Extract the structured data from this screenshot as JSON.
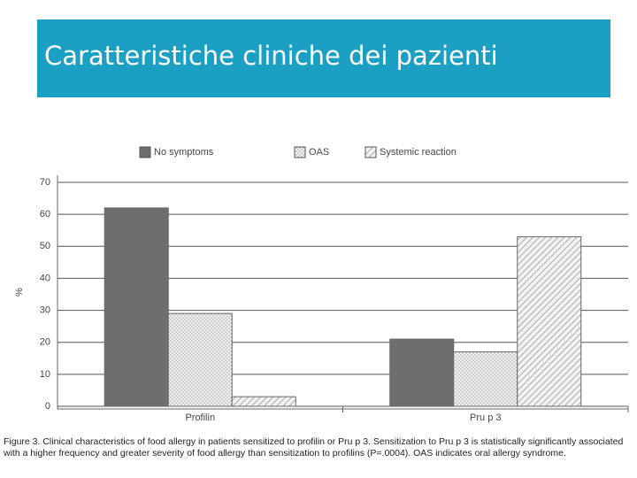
{
  "header": {
    "title": "Caratteristiche cliniche dei pazienti"
  },
  "chart_data": {
    "type": "bar",
    "categories": [
      "Profilin",
      "Pru p 3"
    ],
    "y_label": "%",
    "series": [
      {
        "name": "No symptoms",
        "color": "#6e6e6e",
        "pattern": "solid",
        "values": [
          62,
          21
        ]
      },
      {
        "name": "OAS",
        "color": "#c8c8c8",
        "pattern": "dots",
        "values": [
          29,
          17
        ]
      },
      {
        "name": "Systemic reaction",
        "color": "#b4b4b4",
        "pattern": "hatch",
        "values": [
          3,
          53
        ]
      }
    ],
    "ylim": [
      0,
      70
    ],
    "yticks": [
      0,
      10,
      20,
      30,
      40,
      50,
      60,
      70
    ],
    "grid": true,
    "legend": "top"
  },
  "caption": "Figure 3. Clinical characteristics of food allergy in patients sensitized to profilin or Pru p 3. Sensitization to Pru p 3 is statistically significantly associated with a higher frequency and greater severity of food allergy than sensitization to profilins (P=.0004). OAS indicates oral allergy syndrome."
}
